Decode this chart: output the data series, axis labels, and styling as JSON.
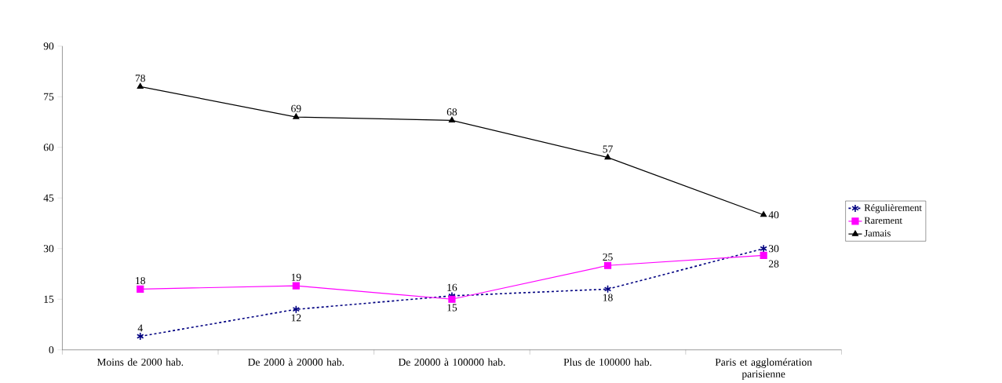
{
  "chart_data": {
    "type": "line",
    "categories": [
      "Moins de 2000 hab.",
      "De 2000 à 20000 hab.",
      "De 20000 à 100000 hab.",
      "Plus de 100000 hab.",
      "Paris et agglomération parisienne"
    ],
    "series": [
      {
        "name": "Régulièrement",
        "color": "#000080",
        "values": [
          4,
          12,
          16,
          18,
          30
        ],
        "marker": "cross",
        "line_style": "dashed"
      },
      {
        "name": "Rarement",
        "color": "#ff00ff",
        "values": [
          18,
          19,
          15,
          25,
          28
        ],
        "marker": "square",
        "line_style": "solid"
      },
      {
        "name": "Jamais",
        "color": "#000000",
        "values": [
          78,
          69,
          68,
          57,
          40
        ],
        "marker": "triangle",
        "line_style": "solid"
      }
    ],
    "ylim": [
      0,
      90
    ],
    "yticks": [
      0,
      15,
      30,
      45,
      60,
      75,
      90
    ],
    "data_labels": true,
    "grid": false,
    "legend": "right"
  }
}
